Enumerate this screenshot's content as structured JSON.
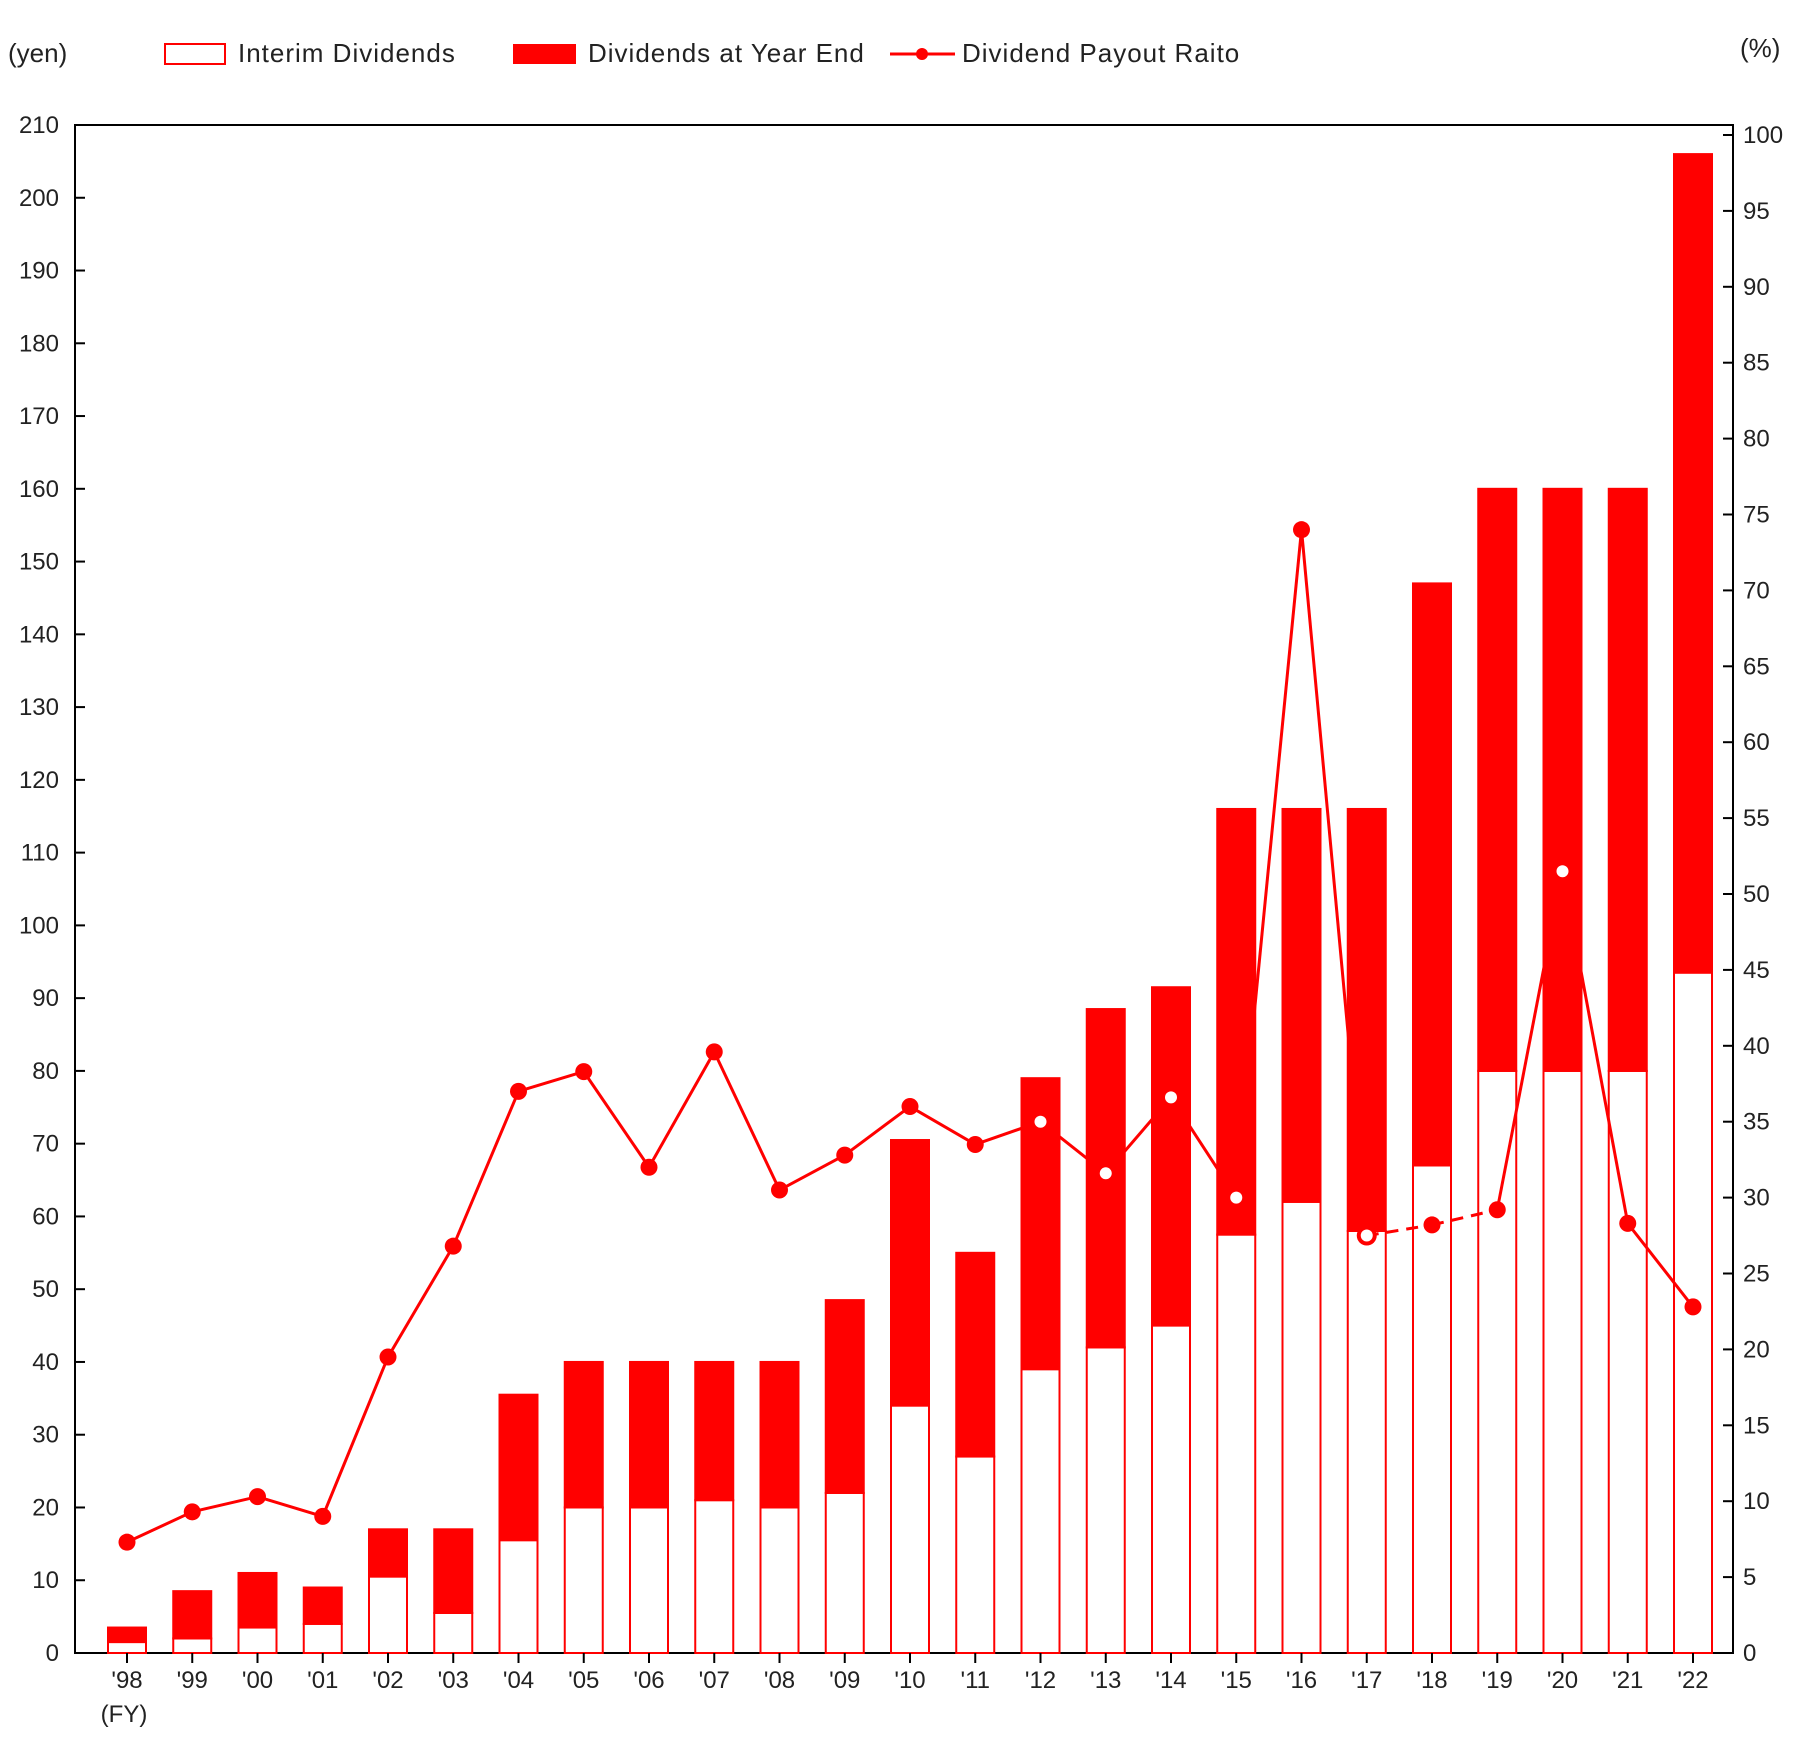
{
  "colors": {
    "accent": "#ff0000",
    "interim_fill": "#ffffff",
    "axis": "#000000",
    "background": "#ffffff"
  },
  "legend": {
    "interim": "Interim Dividends",
    "year_end": "Dividends at Year End",
    "payout": "Dividend Payout Raito"
  },
  "axes": {
    "left_unit": "(yen)",
    "right_unit": "(%)",
    "fy_label": "(FY)"
  },
  "chart_data": {
    "type": "bar",
    "stacked": true,
    "categories": [
      "'98",
      "'99",
      "'00",
      "'01",
      "'02",
      "'03",
      "'04",
      "'05",
      "'06",
      "'07",
      "'08",
      "'09",
      "'10",
      "'11",
      "'12",
      "'13",
      "'14",
      "'15",
      "'16",
      "'17",
      "'18",
      "'19",
      "'20",
      "'21",
      "'22"
    ],
    "series": [
      {
        "name": "Interim Dividends",
        "axis": "left",
        "values": [
          1.5,
          2,
          3.5,
          4,
          10.5,
          5.5,
          15.5,
          20,
          20,
          21,
          20,
          22,
          34,
          27,
          39,
          42,
          45,
          57.5,
          62,
          58,
          67,
          80,
          80,
          80,
          93.5
        ]
      },
      {
        "name": "Dividends at Year End",
        "axis": "left",
        "values": [
          2,
          6.5,
          7.5,
          5,
          6.5,
          11.5,
          20,
          20,
          20,
          19,
          20,
          26.5,
          36.5,
          28,
          40,
          46.5,
          46.5,
          58.5,
          54,
          58,
          80,
          80,
          80,
          80,
          112.5
        ]
      },
      {
        "name": "Dividend Payout Raito",
        "type": "line",
        "axis": "right",
        "values": [
          7.3,
          9.3,
          10.3,
          9.0,
          19.5,
          26.8,
          37.0,
          38.3,
          32.0,
          39.6,
          30.5,
          32.8,
          36.0,
          33.5,
          35.0,
          31.6,
          36.6,
          30.0,
          74.0,
          27.5,
          28.2,
          29.2,
          51.5,
          28.3,
          22.8
        ],
        "hollow_points": [
          "'12",
          "'13",
          "'14",
          "'15",
          "'17",
          "'20"
        ],
        "dashed_segments": [
          [
            "'17",
            "'18"
          ],
          [
            "'18",
            "'19"
          ]
        ]
      }
    ],
    "y_left": {
      "min": 0,
      "max": 210,
      "step": 10
    },
    "y_right": {
      "min": 0,
      "max": 100,
      "step": 5
    },
    "xlabel": "(FY)",
    "legend_position": "top",
    "grid": false
  }
}
